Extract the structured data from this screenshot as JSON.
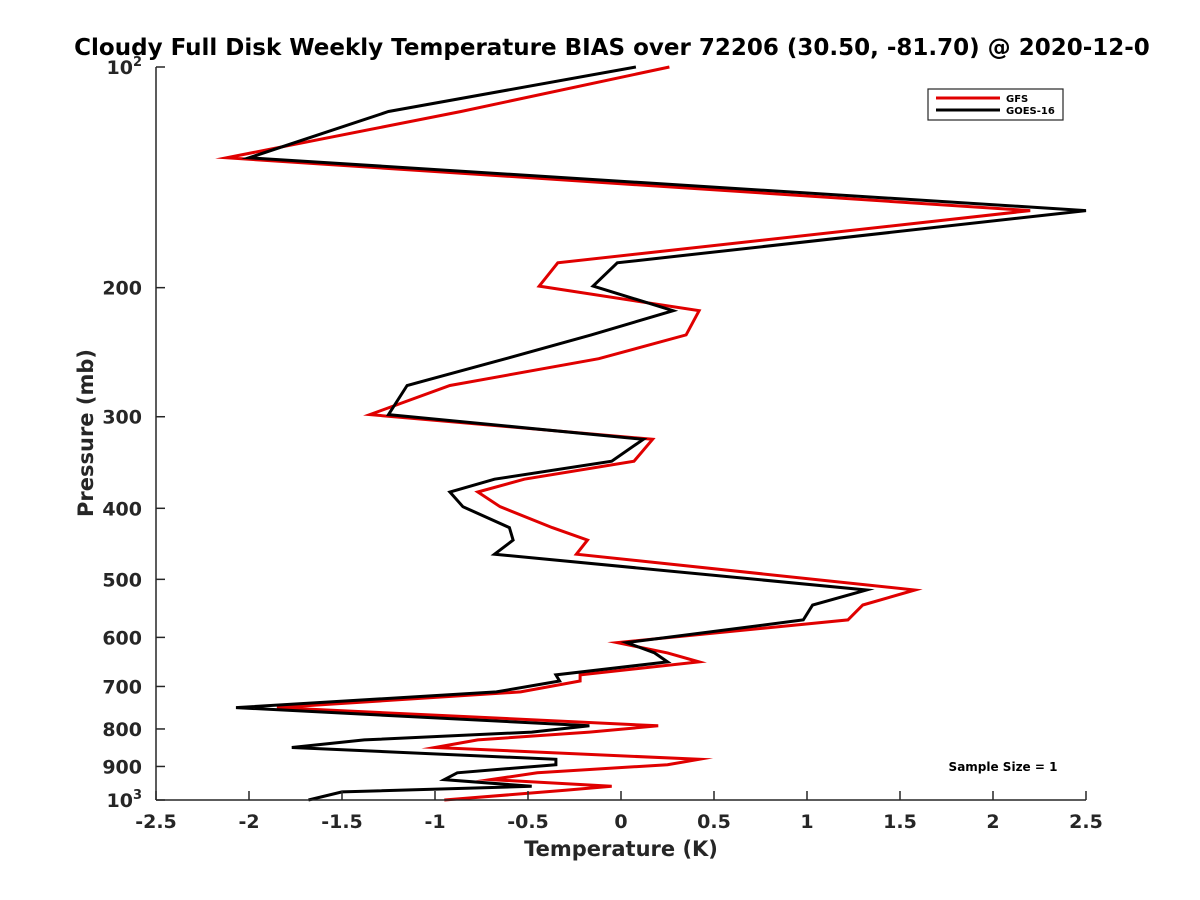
{
  "chart_data": {
    "type": "line",
    "title": "Cloudy Full Disk Weekly Temperature BIAS over 72206 (30.50, -81.70) @ 2020-12-0",
    "xlabel": "Temperature (K)",
    "ylabel": "Pressure (mb)",
    "xlim": [
      -2.5,
      2.5
    ],
    "ylim": [
      100,
      1000
    ],
    "y_scale": "log",
    "y_reversed": true,
    "grid": false,
    "legend_position": "top-right",
    "x_ticks": [
      {
        "value": -2.5,
        "label": "-2.5"
      },
      {
        "value": -2,
        "label": "-2"
      },
      {
        "value": -1.5,
        "label": "-1.5"
      },
      {
        "value": -1,
        "label": "-1"
      },
      {
        "value": -0.5,
        "label": "-0.5"
      },
      {
        "value": 0,
        "label": "0"
      },
      {
        "value": 0.5,
        "label": "0.5"
      },
      {
        "value": 1,
        "label": "1"
      },
      {
        "value": 1.5,
        "label": "1.5"
      },
      {
        "value": 2,
        "label": "2"
      },
      {
        "value": 2.5,
        "label": "2.5"
      }
    ],
    "y_ticks": [
      {
        "value": 100,
        "label": "10",
        "sup": "2"
      },
      {
        "value": 200,
        "label": "200",
        "sup": ""
      },
      {
        "value": 300,
        "label": "300",
        "sup": ""
      },
      {
        "value": 400,
        "label": "400",
        "sup": ""
      },
      {
        "value": 500,
        "label": "500",
        "sup": ""
      },
      {
        "value": 600,
        "label": "600",
        "sup": ""
      },
      {
        "value": 700,
        "label": "700",
        "sup": ""
      },
      {
        "value": 800,
        "label": "800",
        "sup": ""
      },
      {
        "value": 900,
        "label": "900",
        "sup": ""
      },
      {
        "value": 1000,
        "label": "10",
        "sup": "3"
      }
    ],
    "annotation": "Sample Size = 1",
    "series": [
      {
        "name": "GFS",
        "color": "#e00000",
        "points": [
          [
            0.26,
            100
          ],
          [
            -0.86,
            115
          ],
          [
            -2.12,
            133
          ],
          [
            2.2,
            157
          ],
          [
            -0.34,
            185
          ],
          [
            -0.44,
            199
          ],
          [
            0.42,
            215
          ],
          [
            0.35,
            232
          ],
          [
            -0.12,
            250
          ],
          [
            -0.92,
            272
          ],
          [
            -1.35,
            298
          ],
          [
            0.17,
            322
          ],
          [
            0.07,
            345
          ],
          [
            -0.52,
            365
          ],
          [
            -0.77,
            380
          ],
          [
            -0.65,
            398
          ],
          [
            -0.37,
            425
          ],
          [
            -0.18,
            442
          ],
          [
            -0.24,
            462
          ],
          [
            1.58,
            517
          ],
          [
            1.3,
            542
          ],
          [
            1.22,
            568
          ],
          [
            -0.02,
            610
          ],
          [
            0.25,
            630
          ],
          [
            0.42,
            648
          ],
          [
            -0.22,
            675
          ],
          [
            -0.22,
            688
          ],
          [
            -0.54,
            712
          ],
          [
            -1.85,
            748
          ],
          [
            0.2,
            792
          ],
          [
            -0.17,
            808
          ],
          [
            -0.77,
            828
          ],
          [
            -1.0,
            848
          ],
          [
            0.42,
            880
          ],
          [
            0.25,
            895
          ],
          [
            -0.45,
            918
          ],
          [
            -0.7,
            938
          ],
          [
            -0.05,
            958
          ],
          [
            -0.3,
            970
          ],
          [
            -0.95,
            1000
          ]
        ]
      },
      {
        "name": "GOES-16",
        "color": "#000000",
        "points": [
          [
            0.08,
            100
          ],
          [
            -1.25,
            115
          ],
          [
            -2.0,
            133
          ],
          [
            2.5,
            157
          ],
          [
            -0.02,
            185
          ],
          [
            -0.15,
            199
          ],
          [
            0.28,
            215
          ],
          [
            -0.16,
            232
          ],
          [
            -0.62,
            250
          ],
          [
            -1.15,
            272
          ],
          [
            -1.25,
            298
          ],
          [
            0.12,
            322
          ],
          [
            -0.05,
            345
          ],
          [
            -0.68,
            365
          ],
          [
            -0.92,
            380
          ],
          [
            -0.85,
            398
          ],
          [
            -0.6,
            425
          ],
          [
            -0.58,
            442
          ],
          [
            -0.68,
            462
          ],
          [
            1.32,
            517
          ],
          [
            1.03,
            542
          ],
          [
            0.98,
            568
          ],
          [
            0.03,
            610
          ],
          [
            0.18,
            630
          ],
          [
            0.25,
            648
          ],
          [
            -0.35,
            675
          ],
          [
            -0.33,
            688
          ],
          [
            -0.67,
            712
          ],
          [
            -2.07,
            748
          ],
          [
            -0.17,
            792
          ],
          [
            -0.48,
            808
          ],
          [
            -1.38,
            828
          ],
          [
            -1.77,
            848
          ],
          [
            -0.35,
            880
          ],
          [
            -0.35,
            895
          ],
          [
            -0.88,
            918
          ],
          [
            -0.95,
            938
          ],
          [
            -0.48,
            958
          ],
          [
            -1.5,
            975
          ],
          [
            -1.68,
            1000
          ]
        ]
      }
    ]
  }
}
